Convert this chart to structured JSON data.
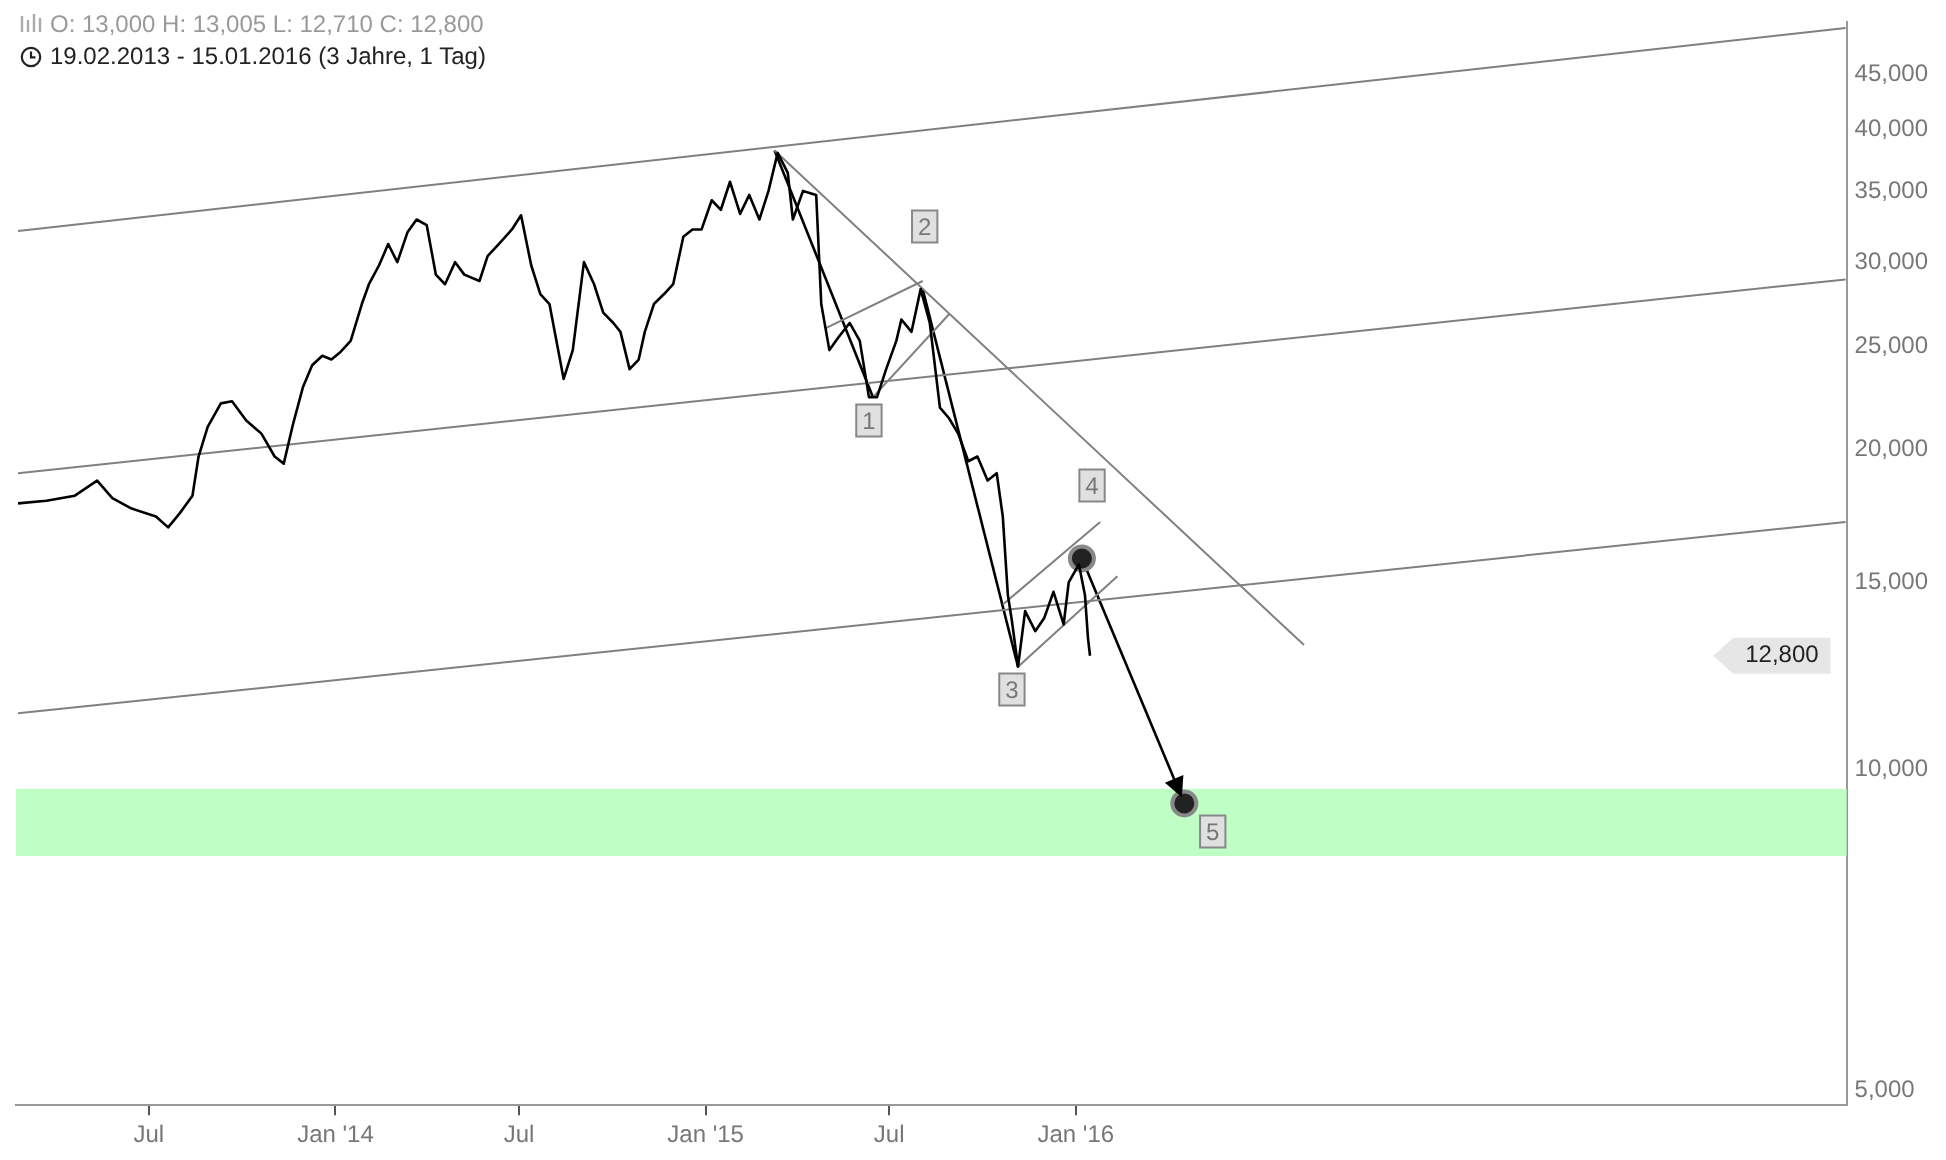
{
  "chart_data": {
    "type": "line",
    "title": "O: 13,000  H: 13,005  L: 12,710  C: 12,800",
    "subtitle": "19.02.2013 - 15.01.2016 (3 Jahre, 1 Tag)",
    "log": "y",
    "grid": false,
    "legend": false,
    "marker": "none",
    "line_style": "solid",
    "xlim": [
      "2013-02-20",
      "2018-01-30"
    ],
    "xticks": [
      {
        "value": "2013-07-01",
        "label": "Jul"
      },
      {
        "value": "2014-01-01",
        "label": "Jan '14"
      },
      {
        "value": "2014-07-01",
        "label": "Jul"
      },
      {
        "value": "2015-01-01",
        "label": "Jan '15"
      },
      {
        "value": "2015-07-01",
        "label": "Jul"
      },
      {
        "value": "2016-01-01",
        "label": "Jan '16"
      }
    ],
    "ylim": [
      4840,
      50400
    ],
    "yticks": [
      {
        "value": 5000,
        "label": "5,000"
      },
      {
        "value": 10000,
        "label": "10,000"
      },
      {
        "value": 15000,
        "label": "15,000"
      },
      {
        "value": 20000,
        "label": "20,000"
      },
      {
        "value": 25000,
        "label": "25,000"
      },
      {
        "value": 30000,
        "label": "30,000"
      },
      {
        "value": 35000,
        "label": "35,000"
      },
      {
        "value": 40000,
        "label": "40,000"
      },
      {
        "value": 45000,
        "label": "45,000"
      }
    ],
    "bands": [
      {
        "axis": "y",
        "from": 8300,
        "to": 9600,
        "color": "#bfffc6"
      }
    ],
    "series": [
      {
        "color": "#000000",
        "x": [
          "2013-02-22",
          "2013-03-22",
          "2013-04-19",
          "2013-05-11",
          "2013-05-26",
          "2013-06-14",
          "2013-07-08",
          "2013-07-20",
          "2013-07-31",
          "2013-08-13",
          "2013-08-19",
          "2013-08-28",
          "2013-09-10",
          "2013-09-21",
          "2013-10-05",
          "2013-10-20",
          "2013-11-02",
          "2013-11-11",
          "2013-11-20",
          "2013-11-30",
          "2013-12-09",
          "2013-12-19",
          "2013-12-28",
          "2014-01-06",
          "2014-01-16",
          "2014-01-27",
          "2014-02-03",
          "2014-02-13",
          "2014-02-22",
          "2014-03-03",
          "2014-03-13",
          "2014-03-22",
          "2014-04-01",
          "2014-04-10",
          "2014-04-19",
          "2014-04-29",
          "2014-05-08",
          "2014-05-23",
          "2014-05-31",
          "2014-06-11",
          "2014-06-24",
          "2014-07-03",
          "2014-07-13",
          "2014-07-22",
          "2014-07-31",
          "2014-08-14",
          "2014-08-23",
          "2014-09-03",
          "2014-09-13",
          "2014-09-22",
          "2014-10-02",
          "2014-10-09",
          "2014-10-18",
          "2014-10-27",
          "2014-11-02",
          "2014-11-11",
          "2014-11-21",
          "2014-11-30",
          "2014-12-10",
          "2014-12-19",
          "2014-12-28",
          "2015-01-07",
          "2015-01-16",
          "2015-01-25",
          "2015-02-04",
          "2015-02-13",
          "2015-02-23",
          "2015-03-04",
          "2015-03-13",
          "2015-03-23",
          "2015-03-28",
          "2015-04-07",
          "2015-04-20",
          "2015-04-25",
          "2015-05-03",
          "2015-05-12",
          "2015-05-23",
          "2015-06-02",
          "2015-06-11",
          "2015-06-19",
          "2015-06-28",
          "2015-07-08",
          "2015-07-13",
          "2015-07-23",
          "2015-08-01",
          "2015-08-10",
          "2015-08-20",
          "2015-08-29",
          "2015-09-07",
          "2015-09-17",
          "2015-09-26",
          "2015-10-06",
          "2015-10-15",
          "2015-10-21",
          "2015-10-26",
          "2015-10-30",
          "2015-11-05",
          "2015-11-12",
          "2015-11-22",
          "2015-12-01",
          "2015-12-10",
          "2015-12-20",
          "2015-12-25",
          "2016-01-04",
          "2016-01-10",
          "2016-01-13",
          "2016-01-15"
        ],
        "values": [
          17800,
          17900,
          18100,
          18700,
          18000,
          17600,
          17300,
          16900,
          17400,
          18100,
          19700,
          21000,
          22100,
          22200,
          21300,
          20700,
          19700,
          19400,
          21100,
          22900,
          24000,
          24500,
          24300,
          24700,
          25300,
          27400,
          28600,
          29800,
          31200,
          30000,
          32000,
          32900,
          32500,
          29200,
          28600,
          30000,
          29200,
          28800,
          30400,
          31200,
          32200,
          33200,
          29800,
          28000,
          27400,
          23300,
          24800,
          30000,
          28600,
          26900,
          26300,
          25800,
          23800,
          24300,
          25800,
          27400,
          28000,
          28600,
          31700,
          32200,
          32200,
          34300,
          33600,
          35700,
          33300,
          34700,
          32900,
          35000,
          38000,
          36400,
          32900,
          35000,
          34700,
          27400,
          24800,
          25500,
          26300,
          25300,
          22400,
          22400,
          23800,
          25300,
          26500,
          25800,
          28300,
          26300,
          21900,
          21400,
          20700,
          19500,
          19700,
          18700,
          19000,
          17300,
          14600,
          13800,
          12500,
          14100,
          13500,
          13900,
          14700,
          13700,
          15000,
          15600,
          14600,
          13300,
          12800
        ]
      },
      {
        "color": "#808080",
        "x": [
          "2013-02-22",
          "2018-01-29"
        ],
        "values": [
          32100,
          49800
        ]
      },
      {
        "color": "#808080",
        "x": [
          "2013-02-22",
          "2018-01-29"
        ],
        "values": [
          19000,
          28900
        ]
      },
      {
        "color": "#808080",
        "x": [
          "2013-02-22",
          "2018-01-29"
        ],
        "values": [
          11300,
          17100
        ]
      },
      {
        "color": "#808080",
        "x": [
          "2015-03-10",
          "2016-08-13"
        ],
        "values": [
          38200,
          13100
        ]
      },
      {
        "color": "#808080",
        "x": [
          "2015-04-29",
          "2015-08-03"
        ],
        "values": [
          26000,
          28800
        ]
      },
      {
        "color": "#808080",
        "x": [
          "2015-06-15",
          "2015-08-29"
        ],
        "values": [
          22400,
          26800
        ]
      },
      {
        "color": "#808080",
        "x": [
          "2015-10-21",
          "2016-01-25"
        ],
        "values": [
          14300,
          17100
        ]
      },
      {
        "color": "#808080",
        "x": [
          "2015-11-05",
          "2016-02-11"
        ],
        "values": [
          12500,
          15200
        ]
      },
      {
        "color": "#000000",
        "x": [
          "2015-03-10",
          "2015-06-15"
        ],
        "values": [
          38200,
          22400
        ]
      },
      {
        "color": "#000000",
        "x": [
          "2015-08-03",
          "2015-11-05"
        ],
        "values": [
          28300,
          12500
        ]
      },
      {
        "color": "#000000",
        "marker": "circle",
        "x": [
          "2016-01-07",
          "2016-04-17"
        ],
        "values": [
          15800,
          9300
        ]
      }
    ],
    "annotations": [
      {
        "text": "1",
        "x": "2015-06-11",
        "y": 21300
      },
      {
        "text": "2",
        "x": "2015-08-05",
        "y": 32400
      },
      {
        "text": "3",
        "x": "2015-10-30",
        "y": 11900
      },
      {
        "text": "4",
        "x": "2016-01-17",
        "y": 18500
      },
      {
        "text": "5",
        "x": "2016-05-15",
        "y": 8750
      },
      "12,800"
    ]
  }
}
